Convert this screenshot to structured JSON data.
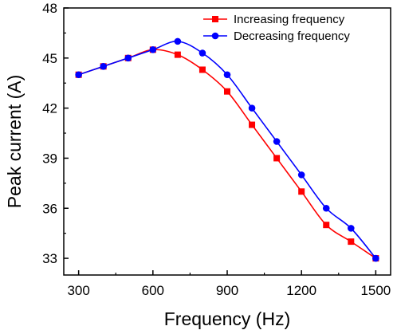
{
  "chart_data": {
    "type": "line",
    "xlabel": "Frequency (Hz)",
    "ylabel": "Peak current (A)",
    "xlim": [
      240,
      1560
    ],
    "ylim": [
      32,
      48
    ],
    "xticks": [
      300,
      600,
      900,
      1200,
      1500
    ],
    "yticks": [
      33,
      36,
      39,
      42,
      45,
      48
    ],
    "grid": false,
    "legend": "top-right",
    "series": [
      {
        "name": "Increasing frequency",
        "color": "#ff0000",
        "marker": "square",
        "x": [
          300,
          400,
          500,
          600,
          700,
          800,
          900,
          1000,
          1100,
          1200,
          1300,
          1400,
          1500
        ],
        "y": [
          44.0,
          44.5,
          45.0,
          45.5,
          45.2,
          44.3,
          43.0,
          41.0,
          39.0,
          37.0,
          35.0,
          34.0,
          33.0
        ]
      },
      {
        "name": "Decreasing frequency",
        "color": "#0000ff",
        "marker": "circle",
        "x": [
          300,
          400,
          500,
          600,
          700,
          800,
          900,
          1000,
          1100,
          1200,
          1300,
          1400,
          1500
        ],
        "y": [
          44.0,
          44.5,
          45.0,
          45.5,
          46.0,
          45.3,
          44.0,
          42.0,
          40.0,
          38.0,
          36.0,
          34.8,
          33.0
        ]
      }
    ]
  }
}
